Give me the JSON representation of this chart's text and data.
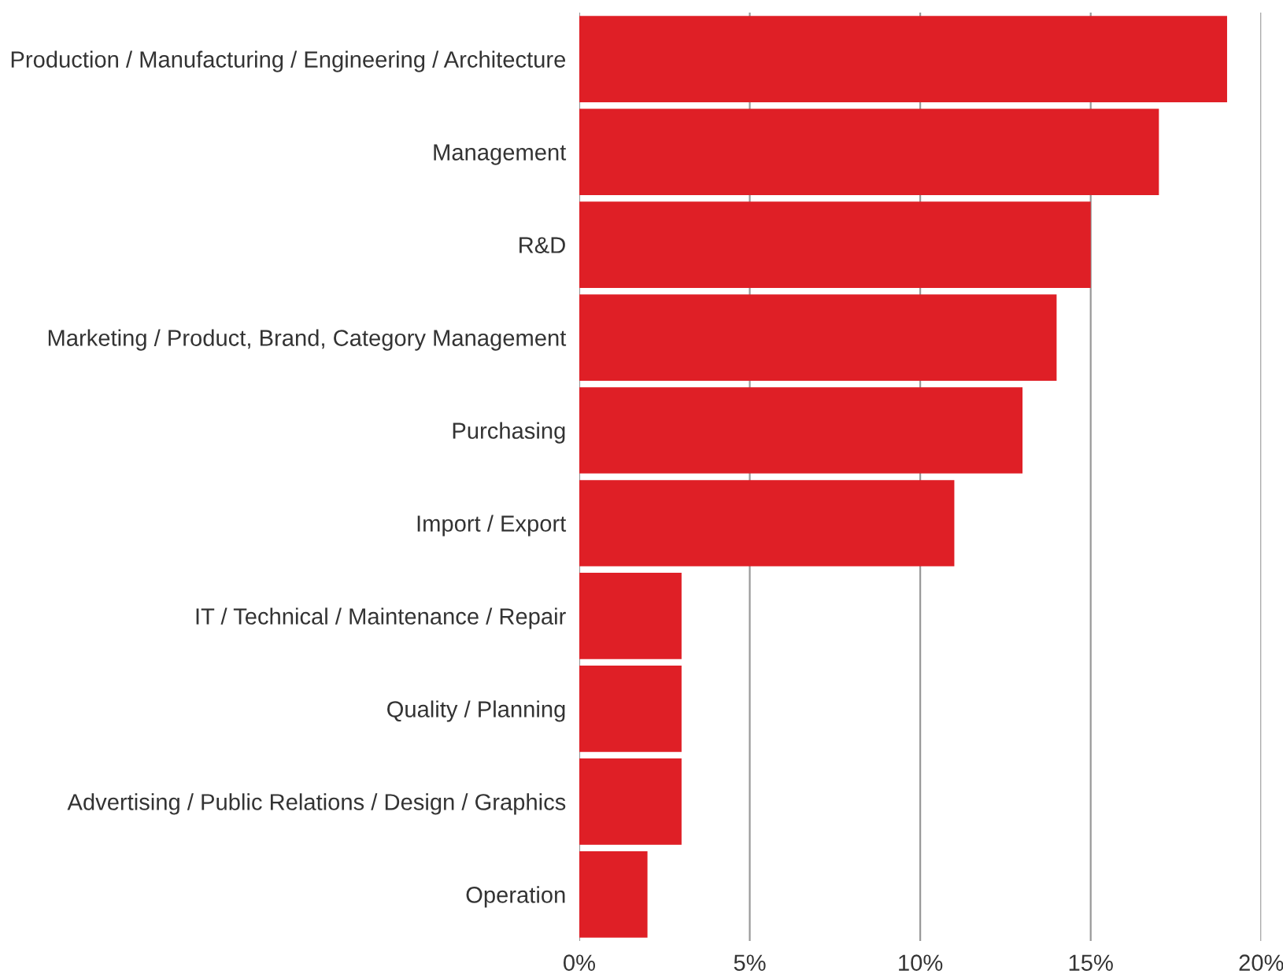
{
  "chart_data": {
    "type": "bar",
    "orientation": "horizontal",
    "categories": [
      "Production / Manufacturing / Engineering / Architecture",
      "Management",
      "R&D",
      "Marketing / Product, Brand, Category Management",
      "Purchasing",
      "Import / Export",
      "IT / Technical / Maintenance / Repair",
      "Quality / Planning",
      "Advertising / Public Relations / Design / Graphics",
      "Operation"
    ],
    "values": [
      19,
      17,
      15,
      14,
      13,
      11,
      3,
      3,
      3,
      2
    ],
    "color": "#df1f26",
    "xlim": [
      0,
      20
    ],
    "xticks": [
      {
        "value": 0,
        "label": "0%"
      },
      {
        "value": 5,
        "label": "5%"
      },
      {
        "value": 10,
        "label": "10%"
      },
      {
        "value": 15,
        "label": "15%"
      },
      {
        "value": 20,
        "label": "20%"
      }
    ],
    "grid": "x"
  }
}
